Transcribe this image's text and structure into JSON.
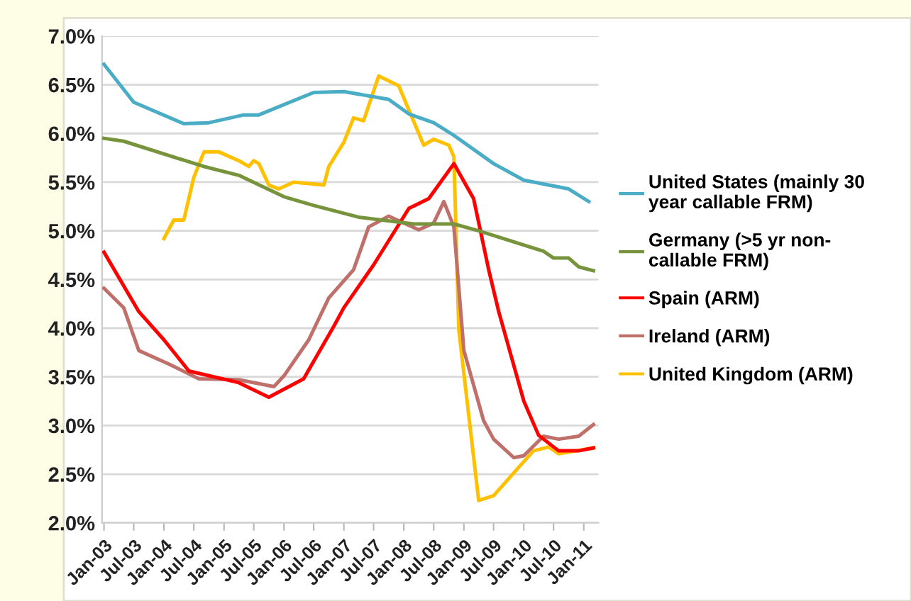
{
  "chart_data": {
    "type": "line",
    "xlim": [
      "2002-12-20",
      "2011-04-01"
    ],
    "xticks": [
      {
        "value": "2003-01",
        "label": "Jan-03"
      },
      {
        "value": "2003-07",
        "label": "Jul-03"
      },
      {
        "value": "2004-01",
        "label": "Jan-04"
      },
      {
        "value": "2004-07",
        "label": "Jul-04"
      },
      {
        "value": "2005-01",
        "label": "Jan-05"
      },
      {
        "value": "2005-07",
        "label": "Jul-05"
      },
      {
        "value": "2006-01",
        "label": "Jan-06"
      },
      {
        "value": "2006-07",
        "label": "Jul-06"
      },
      {
        "value": "2007-01",
        "label": "Jan-07"
      },
      {
        "value": "2007-07",
        "label": "Jul-07"
      },
      {
        "value": "2008-01",
        "label": "Jan-08"
      },
      {
        "value": "2008-07",
        "label": "Jul-08"
      },
      {
        "value": "2009-01",
        "label": "Jan-09"
      },
      {
        "value": "2009-07",
        "label": "Jul-09"
      },
      {
        "value": "2010-01",
        "label": "Jan-10"
      },
      {
        "value": "2010-07",
        "label": "Jul-10"
      },
      {
        "value": "2011-01",
        "label": "Jan-11"
      }
    ],
    "ylim": [
      2,
      7
    ],
    "yticks": [
      {
        "value": 2,
        "label": "2.0%"
      },
      {
        "value": 2.5,
        "label": "2.5%"
      },
      {
        "value": 3,
        "label": "3.0%"
      },
      {
        "value": 3.5,
        "label": "3.5%"
      },
      {
        "value": 4,
        "label": "4.0%"
      },
      {
        "value": 4.5,
        "label": "4.5%"
      },
      {
        "value": 5,
        "label": "5.0%"
      },
      {
        "value": 5.5,
        "label": "5.5%"
      },
      {
        "value": 6,
        "label": "6.0%"
      },
      {
        "value": 6.5,
        "label": "6.5%"
      },
      {
        "value": 7,
        "label": "7.0%"
      }
    ],
    "grid": "y",
    "legend": "right",
    "marker": "none",
    "line_style": "solid",
    "series": [
      {
        "name": "United States (mainly 30\nyear callable FRM)",
        "color": "#4bacc6",
        "x": [
          "2003-01",
          "2003-07",
          "2004-05",
          "2004-10",
          "2005-05",
          "2005-08",
          "2006-07",
          "2007-01",
          "2007-10",
          "2008-02",
          "2008-07",
          "2008-11",
          "2009-07",
          "2010-01",
          "2010-10",
          "2011-02"
        ],
        "values": [
          6.71,
          6.32,
          6.1,
          6.11,
          6.19,
          6.19,
          6.42,
          6.43,
          6.35,
          6.2,
          6.11,
          5.98,
          5.69,
          5.52,
          5.43,
          5.3
        ]
      },
      {
        "name": "Germany (>5 yr non-\ncallable FRM)",
        "color": "#77933c",
        "x": [
          "2003-01",
          "2003-05",
          "2004-09",
          "2005-04",
          "2006-01",
          "2006-07",
          "2007-04",
          "2008-03",
          "2008-11",
          "2009-04",
          "2010-05",
          "2010-07",
          "2010-10",
          "2010-12",
          "2011-03"
        ],
        "values": [
          5.95,
          5.92,
          5.66,
          5.57,
          5.35,
          5.26,
          5.14,
          5.07,
          5.07,
          5.0,
          4.79,
          4.72,
          4.72,
          4.63,
          4.59
        ]
      },
      {
        "name": "Spain (ARM)",
        "color": "#ff0000",
        "x": [
          "2003-01",
          "2003-08",
          "2004-01",
          "2004-06",
          "2005-04",
          "2005-10",
          "2006-05",
          "2006-11",
          "2007-01",
          "2007-07",
          "2008-02",
          "2008-06",
          "2008-11",
          "2009-03",
          "2009-06",
          "2009-08",
          "2010-01",
          "2010-04",
          "2010-08",
          "2010-12",
          "2011-03"
        ],
        "values": [
          4.78,
          4.17,
          3.88,
          3.56,
          3.44,
          3.29,
          3.48,
          4.02,
          4.21,
          4.65,
          5.23,
          5.33,
          5.69,
          5.33,
          4.6,
          4.17,
          3.25,
          2.9,
          2.74,
          2.74,
          2.77
        ]
      },
      {
        "name": "Ireland (ARM)",
        "color": "#c0706a",
        "x": [
          "2003-01",
          "2003-05",
          "2003-08",
          "2004-02",
          "2004-08",
          "2005-04",
          "2005-11",
          "2006-01",
          "2006-06",
          "2006-10",
          "2007-03",
          "2007-06",
          "2007-10",
          "2008-04",
          "2008-07",
          "2008-09",
          "2008-11",
          "2009-01",
          "2009-05",
          "2009-07",
          "2009-11",
          "2010-01",
          "2010-05",
          "2010-08",
          "2010-12",
          "2011-03"
        ],
        "values": [
          4.41,
          4.21,
          3.77,
          3.63,
          3.48,
          3.47,
          3.4,
          3.51,
          3.88,
          4.31,
          4.6,
          5.04,
          5.15,
          5.01,
          5.08,
          5.3,
          5.04,
          3.77,
          3.05,
          2.86,
          2.67,
          2.69,
          2.89,
          2.86,
          2.89,
          3.01
        ]
      },
      {
        "name": "United Kingdom (ARM)",
        "color": "#ffc000",
        "x": [
          "2004-01",
          "2004-03",
          "2004-05",
          "2004-07",
          "2004-09",
          "2004-12",
          "2005-04",
          "2005-06",
          "2005-07",
          "2005-08",
          "2005-10",
          "2005-12",
          "2006-03",
          "2006-09",
          "2006-10",
          "2007-01",
          "2007-03",
          "2007-05",
          "2007-08",
          "2007-12",
          "2008-02",
          "2008-05",
          "2008-07",
          "2008-10",
          "2008-11",
          "2008-12",
          "2009-04",
          "2009-07",
          "2009-12",
          "2010-03",
          "2010-06",
          "2010-08",
          "2011-03"
        ],
        "values": [
          4.92,
          5.11,
          5.11,
          5.55,
          5.81,
          5.81,
          5.72,
          5.66,
          5.72,
          5.69,
          5.47,
          5.43,
          5.5,
          5.47,
          5.66,
          5.91,
          6.16,
          6.13,
          6.59,
          6.49,
          6.24,
          5.88,
          5.94,
          5.88,
          5.76,
          3.98,
          2.23,
          2.28,
          2.57,
          2.74,
          2.78,
          2.71,
          2.77
        ]
      }
    ]
  }
}
